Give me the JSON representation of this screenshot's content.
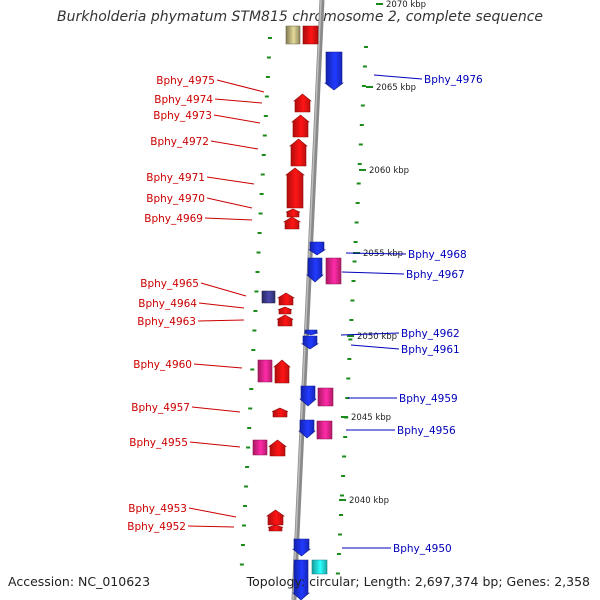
{
  "title": "Burkholderia phymatum STM815 chromosome 2, complete sequence",
  "footer": {
    "accession": "Accession: NC_010623",
    "topology": "Topology: circular; Length: 2,697,374 bp; Genes: 2,358"
  },
  "colors": {
    "backbone": "#8a8a8a",
    "tick": "#1a8a1a",
    "left_label": "#cc0000",
    "right_label": "#0000bb",
    "gene_red": "#ee1111",
    "gene_blue": "#1a2ee8",
    "gene_pink": "#ee2288",
    "gene_khaki": "#b8ae7a",
    "gene_navy": "#3a3a8a",
    "gene_cyan": "#22dddd"
  },
  "scale_labels": [
    "2070 kbp",
    "2065 kbp",
    "2060 kbp",
    "2055 kbp",
    "2050 kbp",
    "2045 kbp",
    "2040 kbp"
  ],
  "left_genes": [
    "Bphy_4975",
    "Bphy_4974",
    "Bphy_4973",
    "Bphy_4972",
    "Bphy_4971",
    "Bphy_4970",
    "Bphy_4969",
    "Bphy_4965",
    "Bphy_4964",
    "Bphy_4963",
    "Bphy_4960",
    "Bphy_4957",
    "Bphy_4955",
    "Bphy_4953",
    "Bphy_4952"
  ],
  "right_genes": [
    "Bphy_4976",
    "Bphy_4968",
    "Bphy_4967",
    "Bphy_4962",
    "Bphy_4961",
    "Bphy_4959",
    "Bphy_4956",
    "Bphy_4950"
  ]
}
